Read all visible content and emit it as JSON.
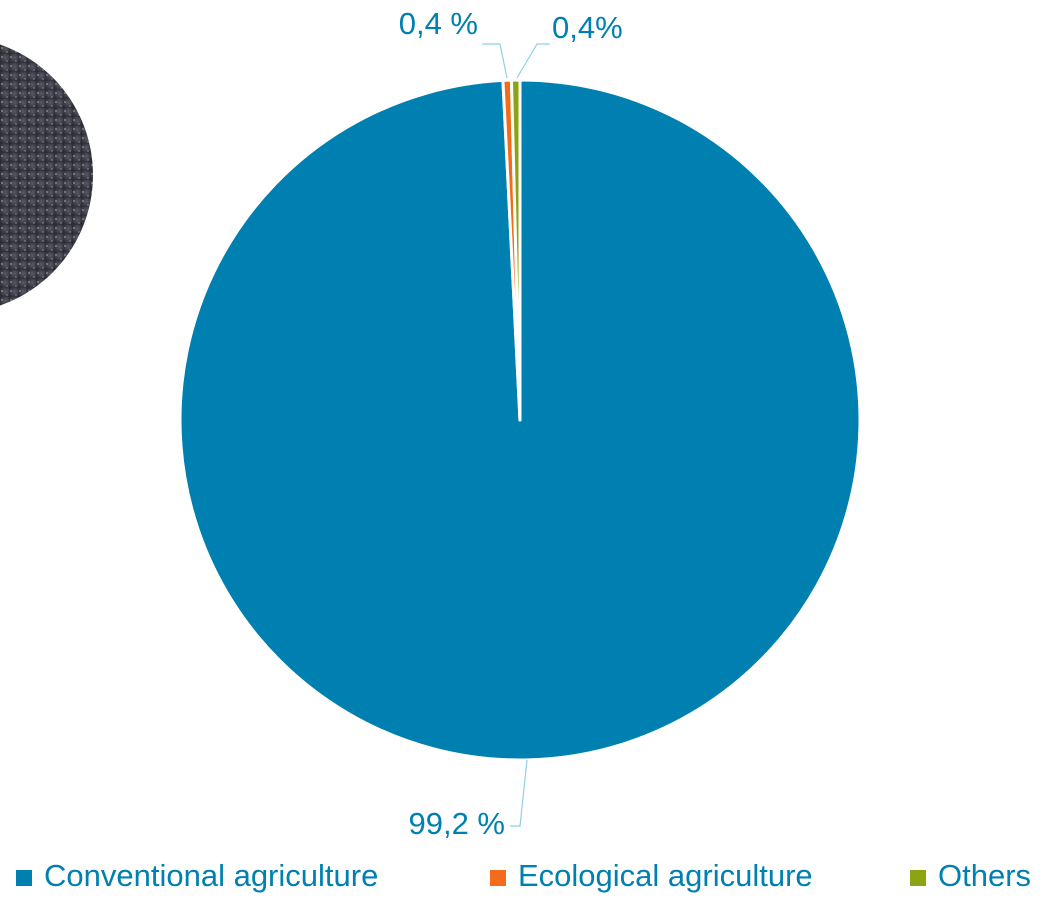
{
  "chart_data": {
    "type": "pie",
    "categories": [
      "Conventional agriculture",
      "Ecological agriculture",
      "Others"
    ],
    "values": [
      99.2,
      0.4,
      0.4
    ],
    "value_labels": [
      "99,2 %",
      "0,4 %",
      "0,4%"
    ],
    "colors": [
      "#0080b0",
      "#f26c1c",
      "#8ca314"
    ],
    "legend": "bottom"
  }
}
